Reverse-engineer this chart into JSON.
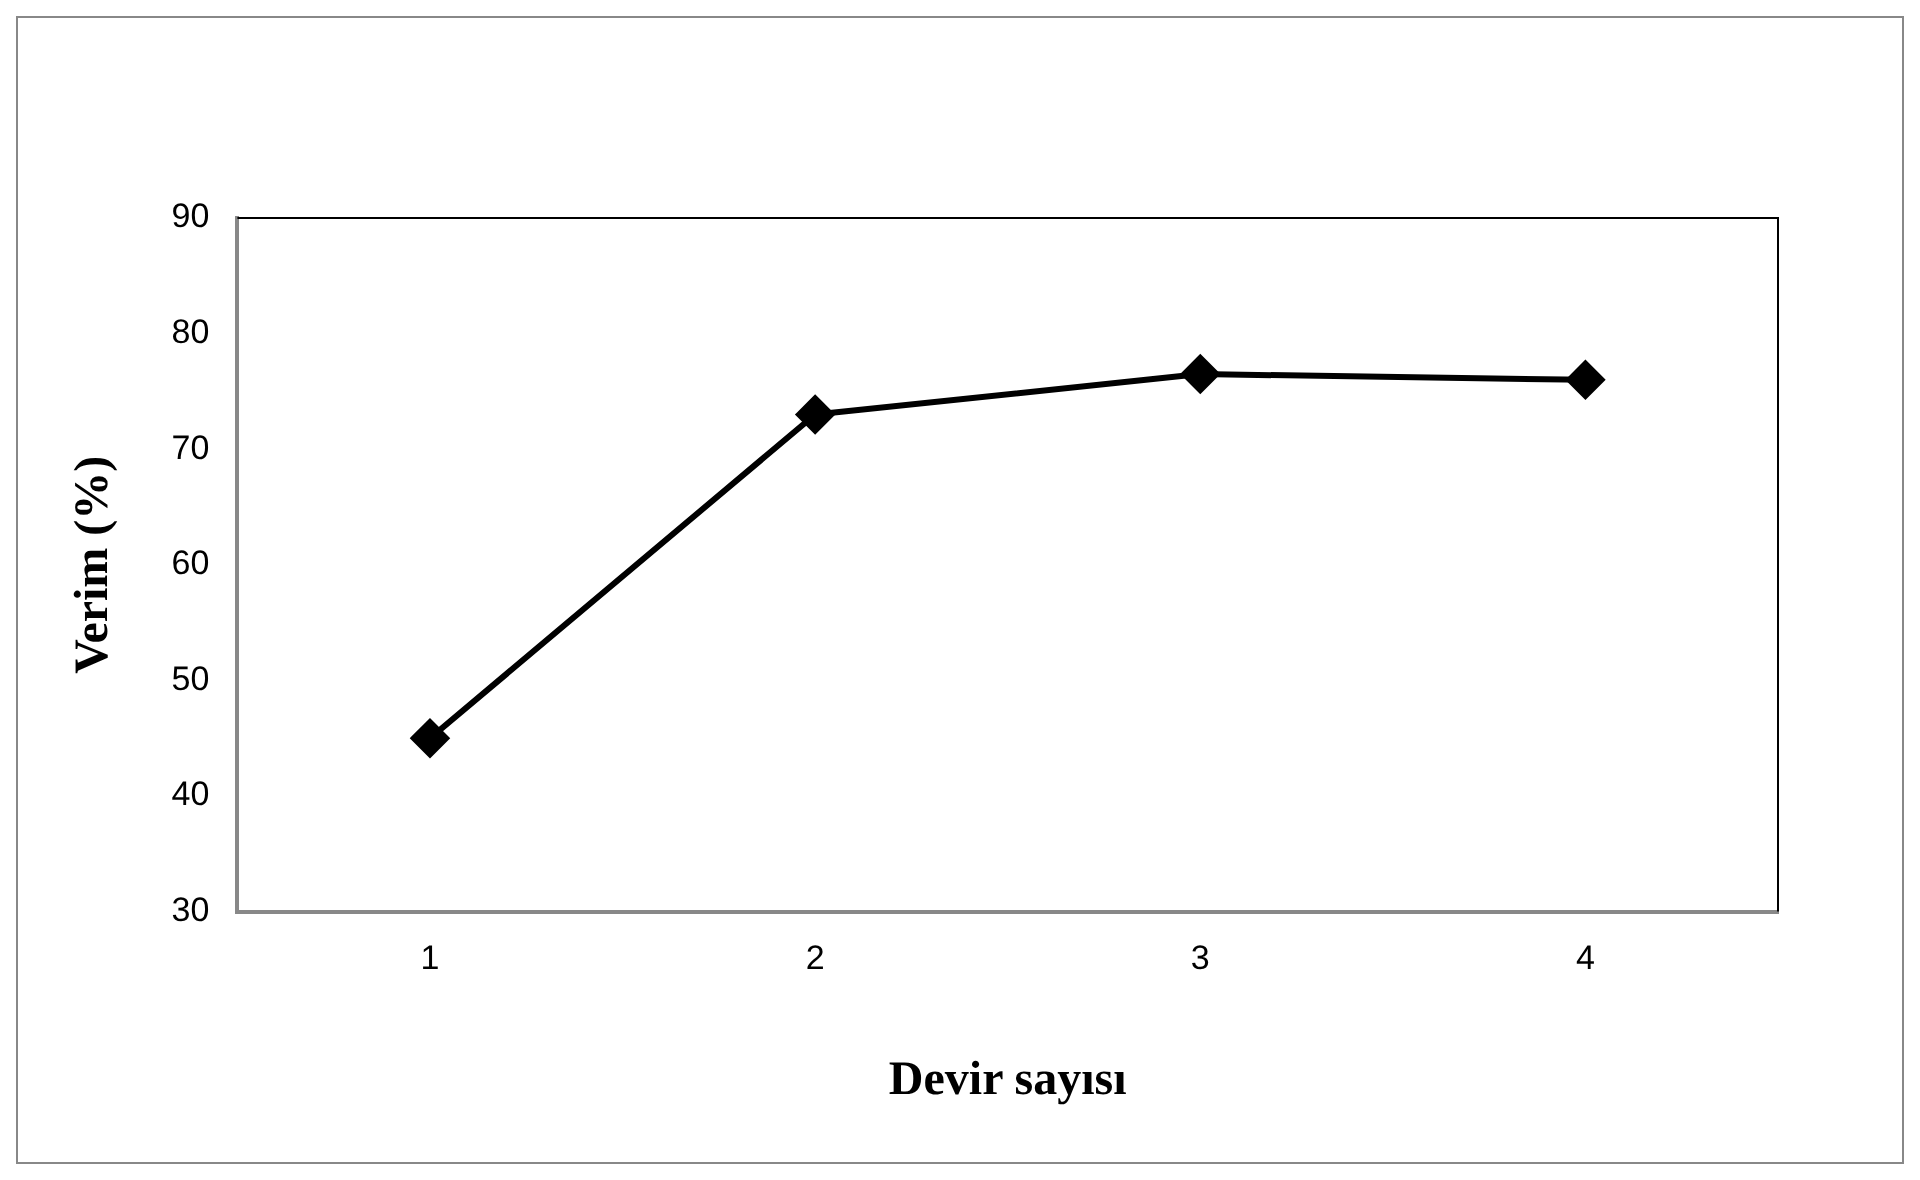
{
  "chart_data": {
    "type": "line",
    "xlabel": "Devir sayısı",
    "ylabel": "Verim (%)",
    "categories": [
      "1",
      "2",
      "3",
      "4"
    ],
    "series": [
      {
        "color": "#000000",
        "values": [
          45,
          73,
          76.5,
          76
        ]
      }
    ],
    "ylim": [
      30,
      90
    ],
    "yticks": [
      30,
      40,
      50,
      60,
      70,
      80,
      90
    ],
    "grid": false,
    "legend": false,
    "marker": "diamond",
    "line_style": "solid"
  }
}
